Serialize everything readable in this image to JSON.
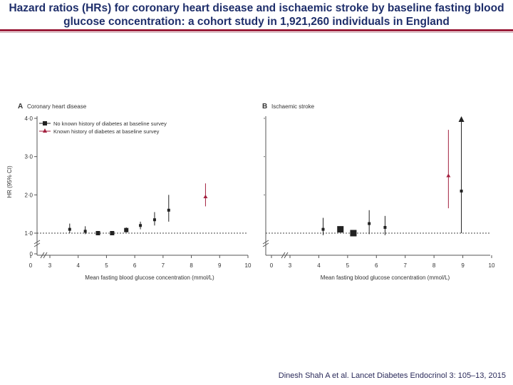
{
  "slide": {
    "title_line1": "Hazard ratios (HRs) for coronary heart disease and ischaemic stroke by baseline fasting blood",
    "title_line2": "glucose concentration: a cohort study in 1,921,260 individuals in England",
    "citation": "Dinesh Shah A et al. Lancet Diabetes Endocrinol 3: 105–13, 2015"
  },
  "colors": {
    "title": "#1f2f6b",
    "rule": "#9b1d3a",
    "no_diabetes": "#222222",
    "known_diabetes": "#a3203f"
  },
  "chart_data": [
    {
      "type": "scatter",
      "panel": "A",
      "title": "Coronary heart disease",
      "xlabel": "Mean fasting blood glucose concentration (mmol/L)",
      "ylabel": "HR (95% CI)",
      "xlim": [
        3,
        10
      ],
      "ylim": [
        0,
        4.0
      ],
      "x_ticks": [
        "0",
        "3",
        "4",
        "5",
        "6",
        "7",
        "8",
        "9",
        "10"
      ],
      "y_ticks": [
        "0",
        "1·0",
        "2·0",
        "3·0",
        "4·0"
      ],
      "reference_line": 1.0,
      "legend": {
        "position": "top-left",
        "entries": [
          "No known history of diabetes at baseline survey",
          "Known history of diabetes at baseline survey"
        ]
      },
      "series": [
        {
          "name": "No known history of diabetes at baseline survey",
          "marker": "square",
          "points": [
            {
              "x": 3.7,
              "y": 1.1,
              "lo": 1.0,
              "hi": 1.25
            },
            {
              "x": 4.25,
              "y": 1.05,
              "lo": 0.95,
              "hi": 1.18
            },
            {
              "x": 4.7,
              "y": 1.0,
              "lo": 0.96,
              "hi": 1.05
            },
            {
              "x": 5.2,
              "y": 1.0,
              "lo": 0.96,
              "hi": 1.04
            },
            {
              "x": 5.7,
              "y": 1.08,
              "lo": 1.02,
              "hi": 1.15
            },
            {
              "x": 6.2,
              "y": 1.2,
              "lo": 1.1,
              "hi": 1.3
            },
            {
              "x": 6.7,
              "y": 1.35,
              "lo": 1.2,
              "hi": 1.55
            },
            {
              "x": 7.2,
              "y": 1.6,
              "lo": 1.3,
              "hi": 2.0
            }
          ]
        },
        {
          "name": "Known history of diabetes at baseline survey",
          "marker": "triangle",
          "points": [
            {
              "x": 8.5,
              "y": 1.95,
              "lo": 1.7,
              "hi": 2.3
            }
          ]
        }
      ]
    },
    {
      "type": "scatter",
      "panel": "B",
      "title": "Ischaemic stroke",
      "xlabel": "Mean fasting blood glucose concentration (mmol/L)",
      "ylabel": "",
      "xlim": [
        3,
        10
      ],
      "ylim": [
        0,
        4.0
      ],
      "x_ticks": [
        "0",
        "3",
        "4",
        "5",
        "6",
        "7",
        "8",
        "9",
        "10"
      ],
      "y_ticks": [],
      "reference_line": 1.0,
      "series": [
        {
          "name": "No known history of diabetes at baseline survey",
          "marker": "square",
          "points": [
            {
              "x": 4.15,
              "y": 1.1,
              "lo": 0.9,
              "hi": 1.4
            },
            {
              "x": 4.75,
              "y": 1.1,
              "lo": 1.02,
              "hi": 1.18
            },
            {
              "x": 5.2,
              "y": 1.0,
              "lo": 0.93,
              "hi": 1.06
            },
            {
              "x": 5.75,
              "y": 1.25,
              "lo": 0.95,
              "hi": 1.6
            },
            {
              "x": 6.3,
              "y": 1.15,
              "lo": 0.9,
              "hi": 1.45
            },
            {
              "x": 8.95,
              "y": 2.1,
              "lo": 1.0,
              "hi": 4.0
            }
          ]
        },
        {
          "name": "Known history of diabetes at baseline survey",
          "marker": "triangle",
          "points": [
            {
              "x": 8.5,
              "y": 2.5,
              "lo": 1.65,
              "hi": 3.7
            }
          ]
        }
      ]
    }
  ]
}
